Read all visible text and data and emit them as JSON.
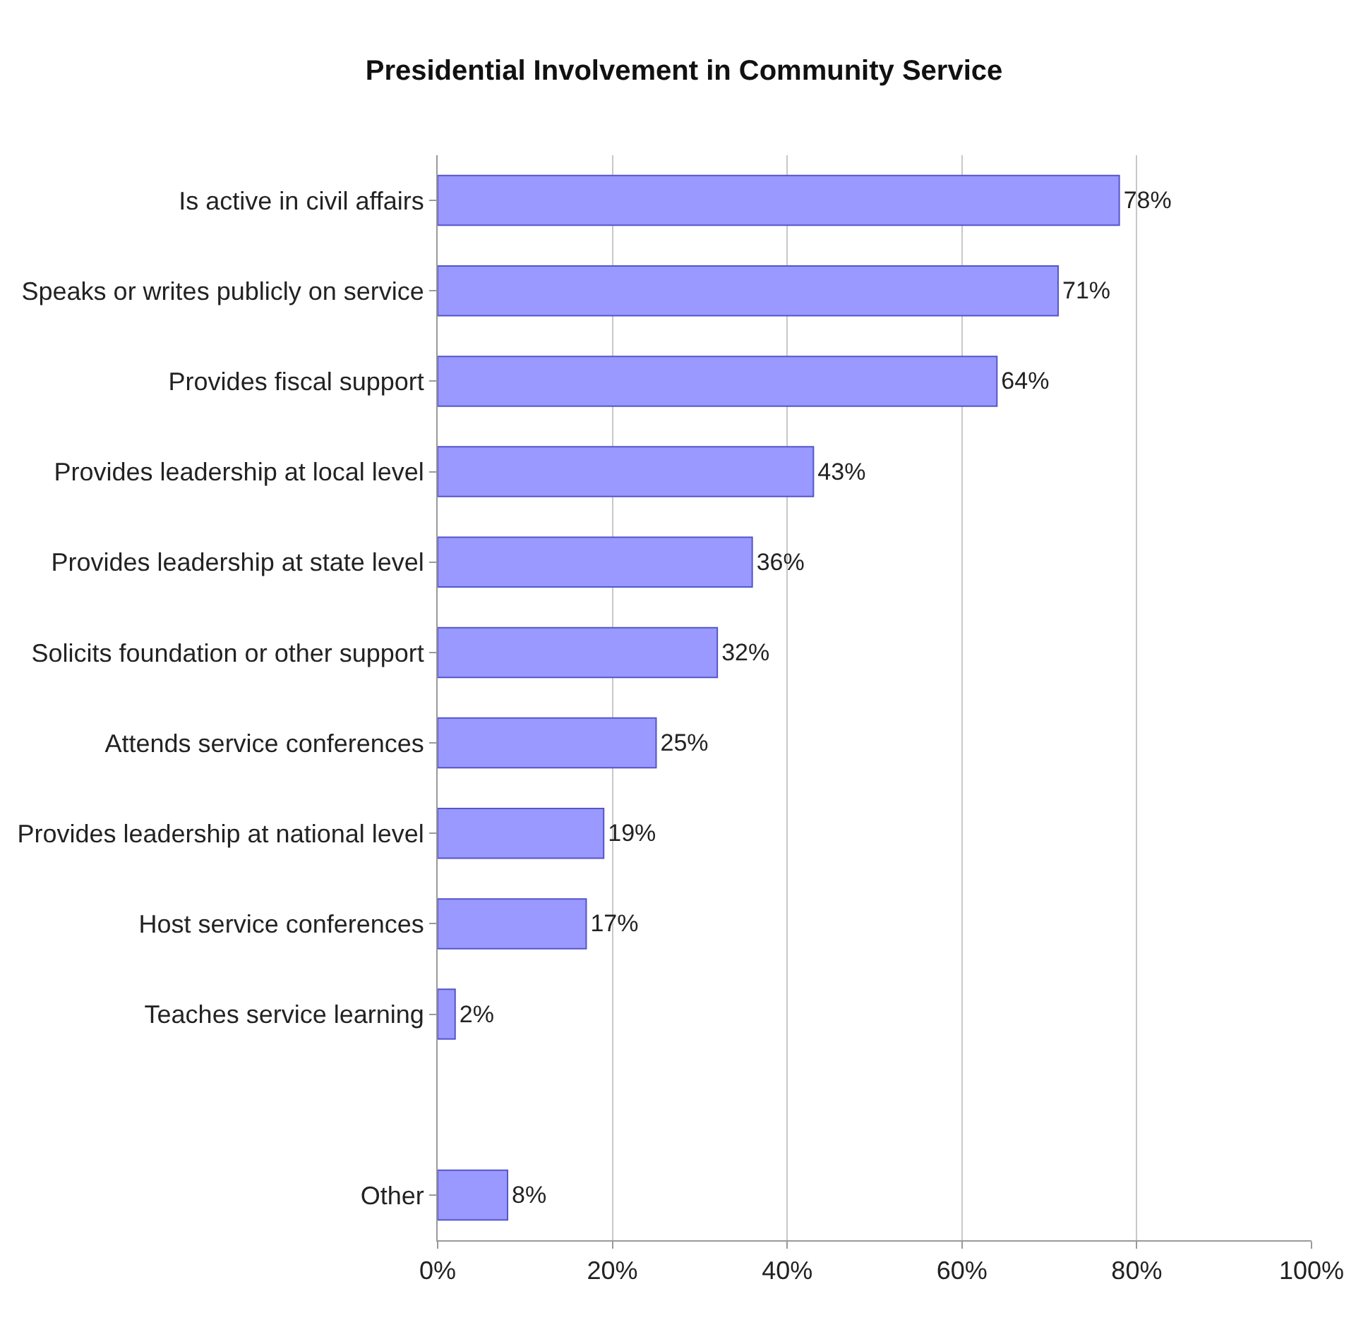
{
  "chart_data": {
    "type": "bar",
    "orientation": "horizontal",
    "title": "Presidential Involvement in Community Service",
    "categories": [
      "Is active in civil affairs",
      "Speaks or writes publicly on service",
      "Provides fiscal support",
      "Provides leadership at local level",
      "Provides leadership at state level",
      "Solicits foundation or other support",
      "Attends service conferences",
      "Provides leadership at national level",
      "Host service conferences",
      "Teaches service learning",
      null,
      "Other"
    ],
    "values": [
      78,
      71,
      64,
      43,
      36,
      32,
      25,
      19,
      17,
      2,
      null,
      8
    ],
    "value_labels": [
      "78%",
      "71%",
      "64%",
      "43%",
      "36%",
      "32%",
      "25%",
      "19%",
      "17%",
      "2%",
      null,
      "8%"
    ],
    "color": "#9999ff",
    "xlim": [
      0,
      100
    ],
    "xticks": [
      {
        "value": 0,
        "label": "0%"
      },
      {
        "value": 20,
        "label": "20%"
      },
      {
        "value": 40,
        "label": "40%"
      },
      {
        "value": 60,
        "label": "60%"
      },
      {
        "value": 80,
        "label": "80%"
      },
      {
        "value": 100,
        "label": "100%"
      }
    ],
    "grid": "x",
    "legend": false
  }
}
